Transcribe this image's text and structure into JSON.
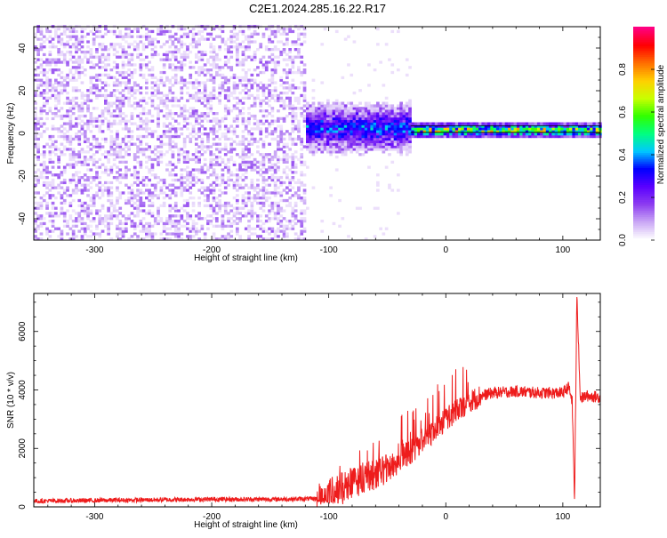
{
  "page_title": "C2E1.2024.285.16.22.R17",
  "colors": {
    "snr_line": "#ee1c1c",
    "axis": "#000000",
    "colormap": [
      "#ffffff",
      "#c9a6f5",
      "#8c3cf0",
      "#5a00ff",
      "#0000ff",
      "#00c8ff",
      "#00ff80",
      "#30ff00",
      "#c8ff00",
      "#ffd000",
      "#ff7000",
      "#ff0000",
      "#ff0080"
    ]
  },
  "chart_data": [
    {
      "type": "heatmap",
      "title": "C2E1.2024.285.16.22.R17",
      "xlabel": "Height of straight line (km)",
      "ylabel": "Frequency (Hz)",
      "xlim": [
        -352,
        132
      ],
      "ylim": [
        -50,
        50
      ],
      "x_ticks": [
        -300,
        -200,
        -100,
        0,
        100
      ],
      "y_ticks": [
        -40,
        -20,
        0,
        20,
        40
      ],
      "colorbar": {
        "label": "Normalized spectral amplitude",
        "range": [
          0,
          1
        ],
        "ticks": [
          0.0,
          0.2,
          0.4,
          0.6,
          0.8
        ]
      },
      "regions": [
        {
          "x_range": [
            -352,
            -120
          ],
          "y_range": [
            -50,
            50
          ],
          "amplitude_range": [
            0.02,
            0.15
          ],
          "description_level": "noise"
        },
        {
          "x_range": [
            -120,
            -30
          ],
          "y_range": [
            -12,
            12
          ],
          "center_hz": 2,
          "amplitude_range": [
            0.1,
            0.4
          ]
        },
        {
          "x_range": [
            -30,
            132
          ],
          "y_range": [
            -2,
            4
          ],
          "center_hz": 1,
          "amplitude_range": [
            0.3,
            1.0
          ]
        }
      ],
      "carrier_line_hz": [
        0.5,
        3.5
      ]
    },
    {
      "type": "line",
      "xlabel": "Height of straight line (km)",
      "ylabel": "SNR (10 * v/v)",
      "xlim": [
        -352,
        132
      ],
      "ylim": [
        0,
        7300
      ],
      "x_ticks": [
        -300,
        -200,
        -100,
        0,
        100
      ],
      "y_ticks": [
        0,
        2000,
        4000,
        6000
      ],
      "series": [
        {
          "x": [
            -352,
            -300,
            -250,
            -200,
            -150,
            -110,
            -100,
            -90,
            -80,
            -70,
            -60,
            -50,
            -40,
            -30,
            -20,
            -10,
            0,
            10,
            20,
            30,
            40,
            60,
            80,
            100,
            105,
            108,
            110,
            112,
            115,
            120,
            132
          ],
          "y": [
            200,
            220,
            240,
            260,
            260,
            280,
            400,
            600,
            800,
            1000,
            1100,
            1300,
            1600,
            1900,
            2300,
            2600,
            3000,
            3300,
            3600,
            3800,
            3900,
            3950,
            3900,
            3900,
            4100,
            3600,
            200,
            7200,
            3700,
            3800,
            3750
          ]
        }
      ]
    }
  ]
}
